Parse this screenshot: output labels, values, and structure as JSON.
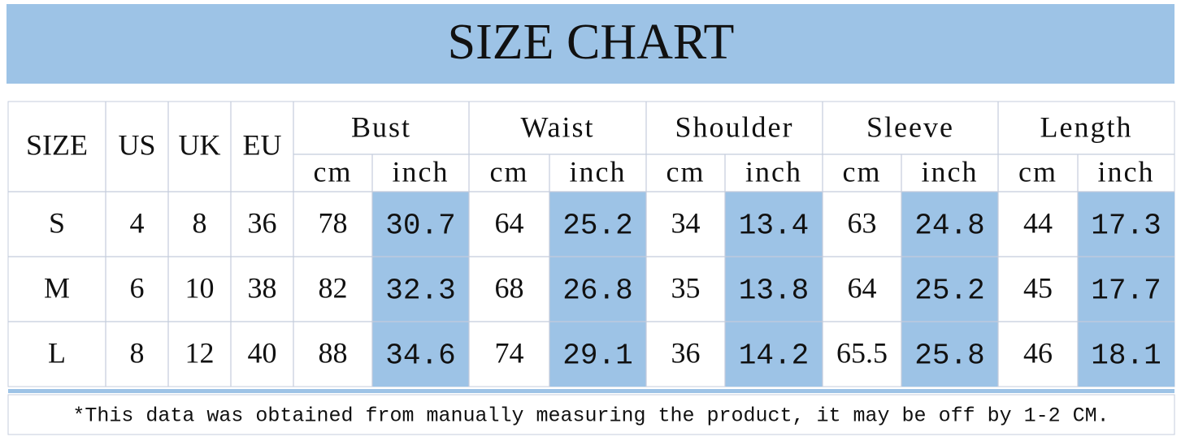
{
  "header": {
    "title": "SIZE CHART"
  },
  "table": {
    "columns": [
      "SIZE",
      "US",
      "UK",
      "EU",
      "Bust",
      "Waist",
      "Shoulder",
      "Sleeve",
      "Length"
    ],
    "subheaders": [
      "cm",
      "inch",
      "cm",
      "inch",
      "cm",
      "inch",
      "cm",
      "inch",
      "cm",
      "inch"
    ],
    "rows": [
      [
        "S",
        "4",
        "8",
        "36",
        "78",
        "30.7",
        "64",
        "25.2",
        "34",
        "13.4",
        "63",
        "24.8",
        "44",
        "17.3"
      ],
      [
        "M",
        "6",
        "10",
        "38",
        "82",
        "32.3",
        "68",
        "26.8",
        "35",
        "13.8",
        "64",
        "25.2",
        "45",
        "17.7"
      ],
      [
        "L",
        "8",
        "12",
        "40",
        "88",
        "34.6",
        "74",
        "29.1",
        "36",
        "14.2",
        "65.5",
        "25.8",
        "46",
        "18.1"
      ]
    ]
  },
  "footnote": "*This data was obtained from manually measuring the product, it may be off by 1-2 CM."
}
